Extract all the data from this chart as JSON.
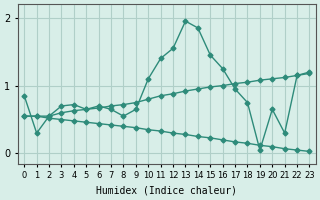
{
  "xlabel": "Humidex (Indice chaleur)",
  "ylabel": "",
  "x": [
    0,
    1,
    2,
    3,
    4,
    5,
    6,
    7,
    8,
    9,
    10,
    11,
    12,
    13,
    14,
    15,
    16,
    17,
    18,
    19,
    20,
    21,
    22,
    23
  ],
  "line1": [
    0.85,
    0.3,
    0.55,
    0.7,
    0.72,
    0.65,
    0.7,
    0.65,
    0.55,
    0.65,
    1.1,
    1.4,
    1.55,
    1.95,
    1.85,
    1.45,
    1.25,
    0.95,
    0.75,
    0.05,
    0.65,
    0.3,
    1.15,
    1.2
  ],
  "line2": [
    0.55,
    0.55,
    0.55,
    0.6,
    0.63,
    0.65,
    0.67,
    0.7,
    0.72,
    0.75,
    0.8,
    0.85,
    0.88,
    0.92,
    0.95,
    0.98,
    1.0,
    1.03,
    1.05,
    1.08,
    1.1,
    1.12,
    1.15,
    1.18
  ],
  "line3": [
    0.55,
    0.55,
    0.52,
    0.5,
    0.48,
    0.46,
    0.44,
    0.42,
    0.4,
    0.38,
    0.35,
    0.33,
    0.3,
    0.28,
    0.25,
    0.23,
    0.2,
    0.17,
    0.15,
    0.12,
    0.1,
    0.07,
    0.05,
    0.03
  ],
  "line_color": "#2e8b7a",
  "bg_color": "#d8eee8",
  "grid_color": "#b0cfc8",
  "ylim": [
    -0.15,
    2.2
  ],
  "xlim": [
    -0.5,
    23.5
  ],
  "yticks": [
    0,
    1,
    2
  ],
  "figsize": [
    3.2,
    2.0
  ],
  "dpi": 100
}
